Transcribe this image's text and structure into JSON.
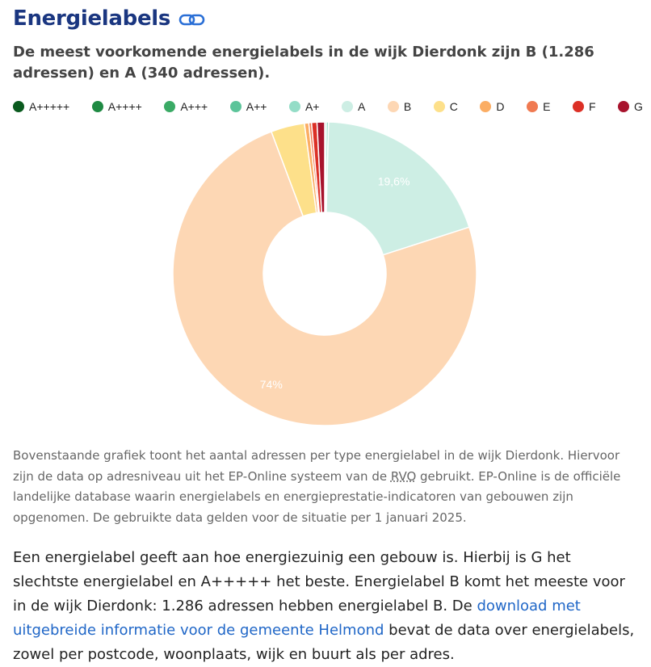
{
  "header": {
    "title": "Energielabels",
    "subtitle": "De meest voorkomende energielabels in de wijk Dierdonk zijn B (1.286 adressen) en A (340 adressen)."
  },
  "chart_data": {
    "type": "pie",
    "categories": [
      "A+++++",
      "A++++",
      "A+++",
      "A++",
      "A+",
      "A",
      "B",
      "C",
      "D",
      "E",
      "F",
      "G"
    ],
    "values": [
      0,
      0,
      0,
      3,
      4,
      340,
      1286,
      62,
      8,
      5,
      10,
      14
    ],
    "colors": [
      "#0a5a1e",
      "#1f8a43",
      "#3aaa65",
      "#5cc49a",
      "#94ddc7",
      "#cdeee4",
      "#fdd7b4",
      "#fde08a",
      "#fbad63",
      "#f07a51",
      "#dc3026",
      "#a8132d"
    ],
    "data_labels": [
      {
        "category": "A",
        "text": "19,6%"
      },
      {
        "category": "B",
        "text": "74%"
      }
    ],
    "legend_position": "top",
    "donut": true
  },
  "caption": {
    "part1": "Bovenstaande grafiek toont het aantal adressen per type energielabel in de wijk Dierdonk. Hiervoor zijn de data op adresniveau uit het EP-Online systeem van de ",
    "abbr": "RVO",
    "part2": " gebruikt. EP-Online is de officiële landelijke database waarin energielabels en energieprestatie-indicatoren van gebouwen zijn opgenomen. De gebruikte data gelden voor de situatie per 1 januari 2025."
  },
  "body": {
    "part1": "Een energielabel geeft aan hoe energiezuinig een gebouw is. Hierbij is G het slechtste energielabel en A+++++ het beste. Energielabel B komt het meeste voor in de wijk Dierdonk: 1.286 adressen hebben energielabel B. De ",
    "link": "download met uitgebreide informatie voor de gemeente Helmond",
    "part2": " bevat de data over energielabels, zowel per postcode, woonplaats, wijk en buurt als per adres."
  }
}
